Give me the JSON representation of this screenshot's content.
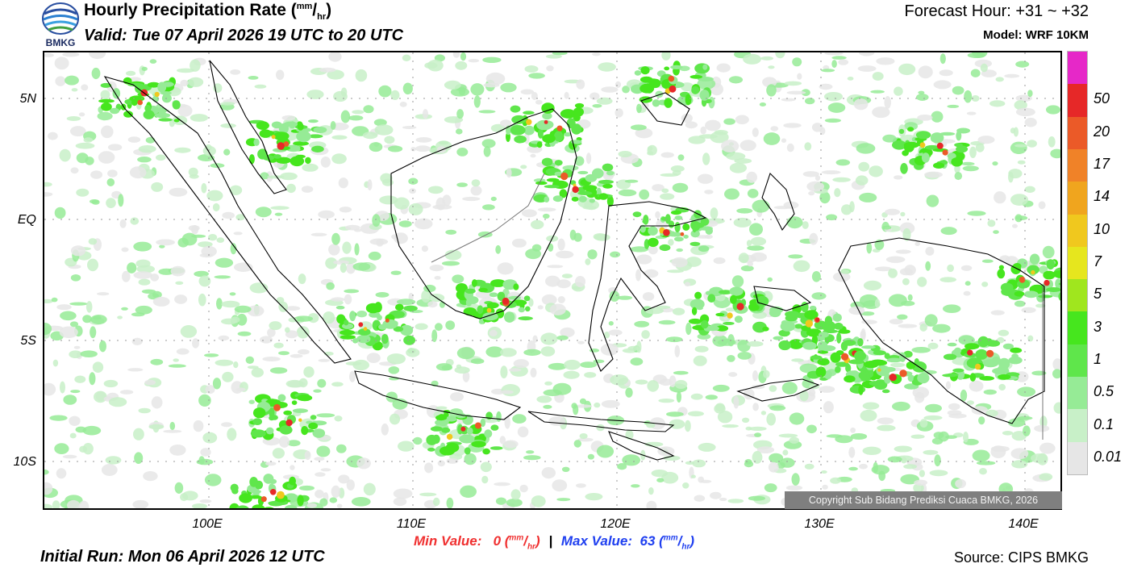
{
  "header": {
    "logo_text": "BMKG",
    "title": "Hourly Precipitation Rate (",
    "title_unit_num": "mm",
    "title_unit_sep": "/",
    "title_unit_den": "hr",
    "title_close": ")",
    "valid": "Valid: Tue 07 April 2026 19 UTC to 20 UTC",
    "forecast_hour": "Forecast Hour: +31 ~ +32",
    "model": "Model: WRF 10KM"
  },
  "map": {
    "lat_labels": [
      "5N",
      "EQ",
      "5S",
      "10S"
    ],
    "lon_labels": [
      "100E",
      "110E",
      "120E",
      "130E",
      "140E"
    ],
    "copyright": "Copyright Sub Bidang Prediksi Cuaca BMKG, 2026"
  },
  "legend": {
    "levels": [
      "0.01",
      "0.1",
      "0.5",
      "1",
      "3",
      "5",
      "7",
      "10",
      "14",
      "17",
      "20",
      "50"
    ],
    "colors": [
      "#e6e6e6",
      "#c8f0c8",
      "#96eb96",
      "#5fe64b",
      "#46e61e",
      "#a0e61e",
      "#e6e61e",
      "#f0c81e",
      "#f0a51e",
      "#f08228",
      "#eb5a28",
      "#e62828",
      "#e628c8"
    ]
  },
  "footer": {
    "min_label": "Min Value:",
    "min_value": "0",
    "max_label": "Max Value:",
    "max_value": "63",
    "separator": "|",
    "unit_num": "mm",
    "unit_den": "hr",
    "initial_run": "Initial Run: Mon 06 April 2026 12 UTC",
    "source": "Source: CIPS BMKG"
  }
}
